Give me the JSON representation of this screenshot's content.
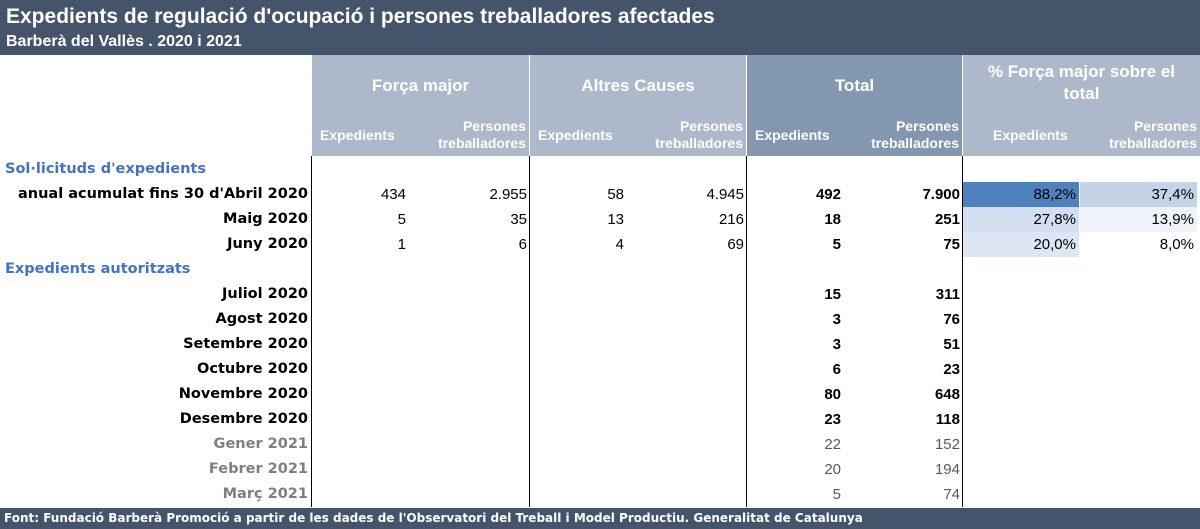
{
  "title": "Expedients de regulació d'ocupació i persones treballadores afectades",
  "subtitle": "Barberà del Vallès . 2020 i 2021",
  "header": {
    "groups": {
      "forca_major": "Força major",
      "altres_causes": "Altres Causes",
      "total": "Total",
      "pct_forca_major": "% Força major sobre el total"
    },
    "sub_expedients": "Expedients",
    "sub_persones_1": "Persones",
    "sub_persones_2": "treballadores"
  },
  "sections": {
    "sollicituds": "Sol·licituds d'expedients",
    "autoritzats": "Expedients autoritzats"
  },
  "rows": [
    {
      "label": "anual acumulat fins 30 d'Abril 2020",
      "fm_exp": "434",
      "fm_pers": "2.955",
      "ac_exp": "58",
      "ac_pers": "4.945",
      "tot_exp": "492",
      "tot_pers": "7.900",
      "pct_exp": "88,2%",
      "pct_pers": "37,4%"
    },
    {
      "label": "Maig 2020",
      "fm_exp": "5",
      "fm_pers": "35",
      "ac_exp": "13",
      "ac_pers": "216",
      "tot_exp": "18",
      "tot_pers": "251",
      "pct_exp": "27,8%",
      "pct_pers": "13,9%"
    },
    {
      "label": "Juny 2020",
      "fm_exp": "1",
      "fm_pers": "6",
      "ac_exp": "4",
      "ac_pers": "69",
      "tot_exp": "5",
      "tot_pers": "75",
      "pct_exp": "20,0%",
      "pct_pers": "8,0%"
    },
    {
      "label": "Juliol 2020",
      "tot_exp": "15",
      "tot_pers": "311"
    },
    {
      "label": "Agost 2020",
      "tot_exp": "3",
      "tot_pers": "76"
    },
    {
      "label": "Setembre 2020",
      "tot_exp": "3",
      "tot_pers": "51"
    },
    {
      "label": "Octubre 2020",
      "tot_exp": "6",
      "tot_pers": "23"
    },
    {
      "label": "Novembre 2020",
      "tot_exp": "80",
      "tot_pers": "648"
    },
    {
      "label": "Desembre 2020",
      "tot_exp": "23",
      "tot_pers": "118"
    },
    {
      "label": "Gener 2021",
      "tot_exp": "22",
      "tot_pers": "152"
    },
    {
      "label": "Febrer 2021",
      "tot_exp": "20",
      "tot_pers": "194"
    },
    {
      "label": "Març 2021",
      "tot_exp": "5",
      "tot_pers": "74"
    }
  ],
  "footer": "Font: Fundació Barberà Promoció a partir de les dades de l'Observatori del Treball i Model Productiu. Generalitat de Catalunya",
  "colors": {
    "title_bg": "#44546a",
    "header_light": "#adb9ca",
    "header_dark": "#8497b0",
    "section_text": "#4472c4",
    "pct_high": "#4f81bd",
    "pct_mid": "#c5d3e9",
    "pct_low": "#dde6f2"
  }
}
